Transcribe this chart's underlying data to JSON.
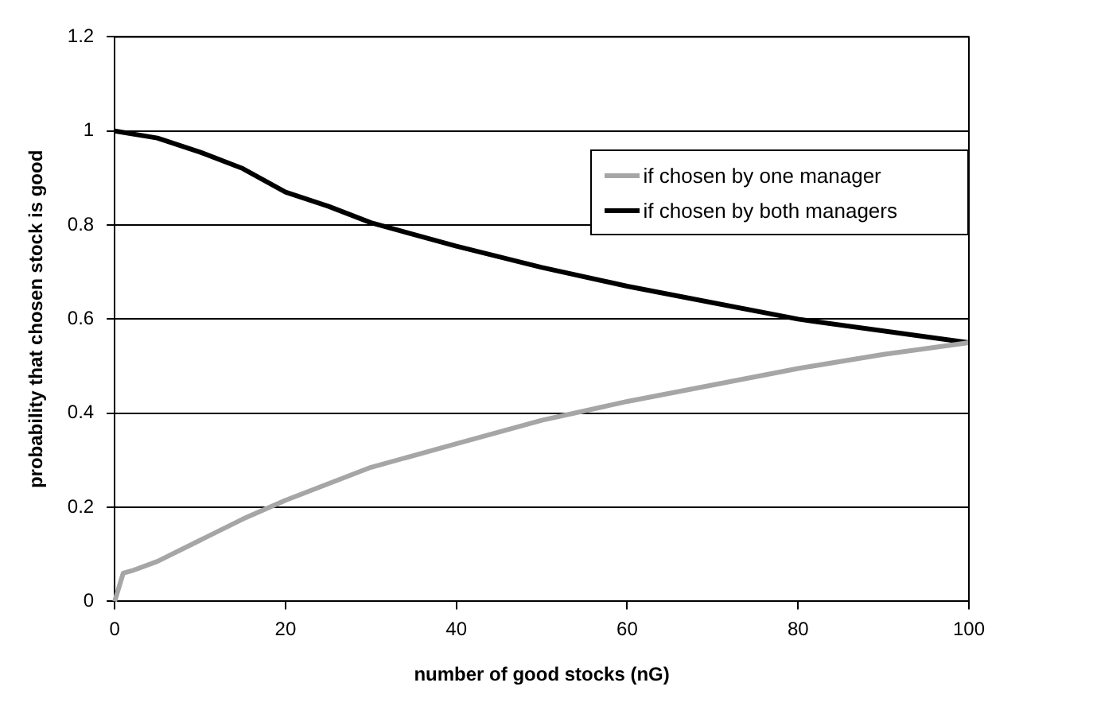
{
  "chart_data": {
    "type": "line",
    "xlabel": "number of good stocks (nG)",
    "ylabel": "probability that chosen stock is good",
    "xlim": [
      0,
      100
    ],
    "xticks": [
      0,
      20,
      40,
      60,
      80,
      100
    ],
    "ylim": [
      0,
      1.2
    ],
    "yticks": [
      0,
      0.2,
      0.4,
      0.6,
      0.8,
      1,
      1.2
    ],
    "grid": "y",
    "legend": "top right",
    "marker": "none",
    "line_style": "solid",
    "series": [
      {
        "name": "if chosen by one manager",
        "color": "#a6a6a6",
        "x": [
          0,
          1,
          2,
          5,
          10,
          15,
          20,
          25,
          30,
          40,
          50,
          60,
          70,
          80,
          90,
          100
        ],
        "values": [
          0,
          0.06,
          0.065,
          0.085,
          0.13,
          0.175,
          0.215,
          0.25,
          0.285,
          0.335,
          0.385,
          0.425,
          0.46,
          0.495,
          0.525,
          0.55
        ]
      },
      {
        "name": "if chosen by both managers",
        "color": "#000000",
        "x": [
          0,
          5,
          10,
          15,
          20,
          25,
          30,
          40,
          50,
          60,
          70,
          80,
          90,
          100
        ],
        "values": [
          1,
          0.985,
          0.955,
          0.92,
          0.87,
          0.84,
          0.805,
          0.755,
          0.71,
          0.67,
          0.635,
          0.6,
          0.575,
          0.55
        ]
      }
    ]
  }
}
